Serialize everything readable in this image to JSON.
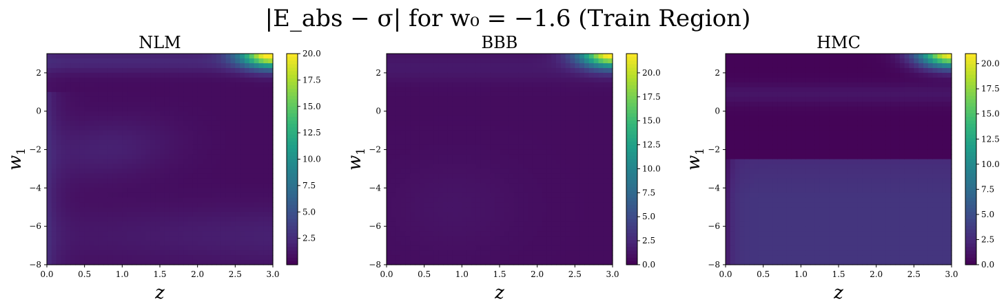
{
  "figure_title": "|E_abs − σ| for w₀ = −1.6 (Train Region)",
  "colors": {
    "viridis": [
      "#440154",
      "#482878",
      "#3e4a89",
      "#31688e",
      "#26828e",
      "#1f9e89",
      "#35b779",
      "#6ece58",
      "#b5de2b",
      "#fde725"
    ]
  },
  "chart_data": [
    {
      "type": "heatmap",
      "title": "NLM",
      "xlabel": "z",
      "ylabel": "w1",
      "xlim": [
        0,
        3
      ],
      "ylim": [
        -8,
        3
      ],
      "x_ticks": [
        "0.0",
        "0.5",
        "1.0",
        "1.5",
        "2.0",
        "2.5",
        "3.0"
      ],
      "y_ticks": [
        "−8",
        "−6",
        "−4",
        "−2",
        "0",
        "2"
      ],
      "colorbar": {
        "min": 0,
        "max": 20,
        "ticks": [
          "2.5",
          "5.0",
          "7.5",
          "10.0",
          "12.5",
          "15.0",
          "17.5",
          "20.0"
        ]
      },
      "colormap": "viridis",
      "approx_values": {
        "background": 1.0,
        "max_top_right": 20,
        "max_location": "z≈3, w1≈3"
      }
    },
    {
      "type": "heatmap",
      "title": "BBB",
      "xlabel": "z",
      "ylabel": "w1",
      "xlim": [
        0,
        3
      ],
      "ylim": [
        -8,
        3
      ],
      "x_ticks": [
        "0.0",
        "0.5",
        "1.0",
        "1.5",
        "2.0",
        "2.5",
        "3.0"
      ],
      "y_ticks": [
        "−8",
        "−6",
        "−4",
        "−2",
        "0",
        "2"
      ],
      "colorbar": {
        "min": 0,
        "max": 22,
        "ticks": [
          "0.0",
          "2.5",
          "5.0",
          "7.5",
          "10.0",
          "12.5",
          "15.0",
          "17.5",
          "20.0"
        ]
      },
      "colormap": "viridis",
      "approx_values": {
        "background": 0.8,
        "max_top_right": 22,
        "max_location": "z≈3, w1≈3"
      }
    },
    {
      "type": "heatmap",
      "title": "HMC",
      "xlabel": "z",
      "ylabel": "w1",
      "xlim": [
        0,
        3
      ],
      "ylim": [
        -8,
        3
      ],
      "x_ticks": [
        "0.0",
        "0.5",
        "1.0",
        "1.5",
        "2.0",
        "2.5",
        "3.0"
      ],
      "y_ticks": [
        "−8",
        "−6",
        "−4",
        "−2",
        "0",
        "2"
      ],
      "colorbar": {
        "min": 0,
        "max": 21,
        "ticks": [
          "0.0",
          "2.5",
          "5.0",
          "7.5",
          "10.0",
          "12.5",
          "15.0",
          "17.5",
          "20.0"
        ]
      },
      "colormap": "viridis",
      "approx_values": {
        "background_upper": 0.3,
        "background_lower": 3.0,
        "max_top_right": 21,
        "max_location": "z≈3, w1≈3"
      }
    }
  ]
}
